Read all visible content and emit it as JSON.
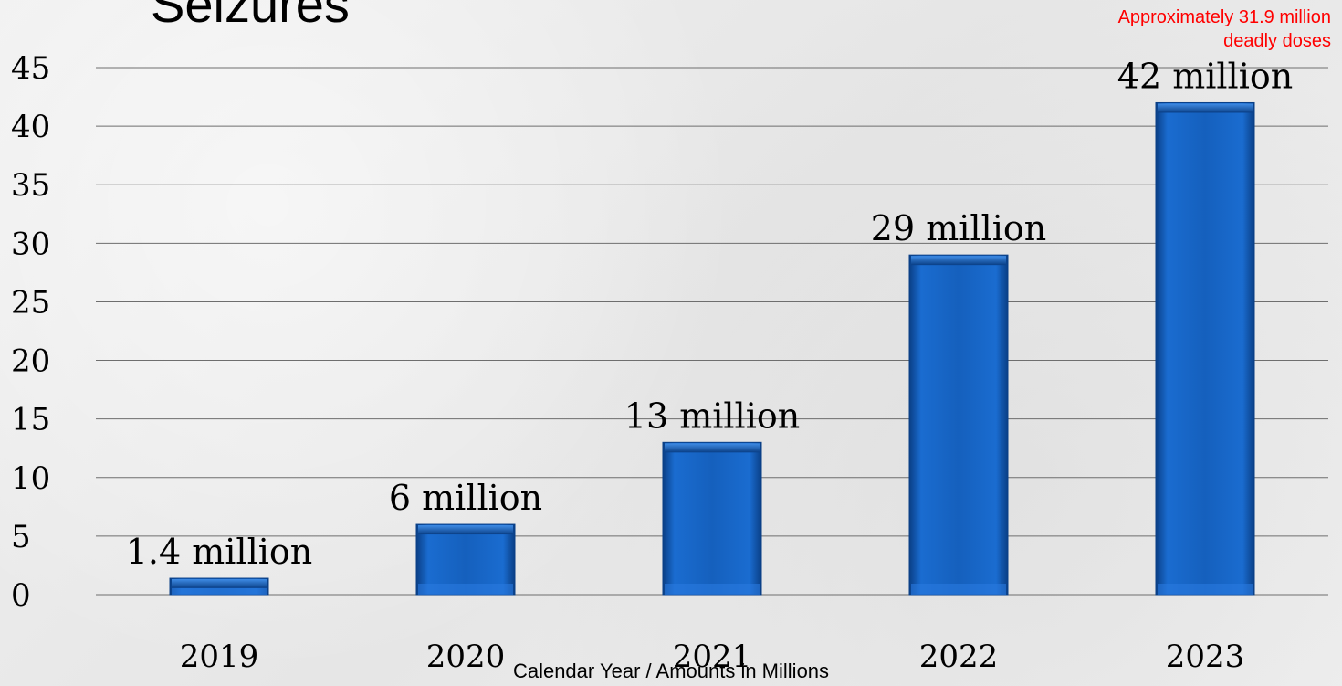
{
  "chart_data": {
    "type": "bar",
    "title": "Seizures",
    "categories": [
      "2019",
      "2020",
      "2021",
      "2022",
      "2023"
    ],
    "values": [
      1.4,
      6,
      13,
      29,
      42
    ],
    "data_labels": [
      "1.4 million",
      "6 million",
      "13 million",
      "29 million",
      "42 million"
    ],
    "xlabel": "Calendar Year / Amounts in Millions",
    "ylabel": "",
    "ylim": [
      0,
      45
    ],
    "yticks": [
      "0",
      "5",
      "10",
      "15",
      "20",
      "25",
      "30",
      "35",
      "40",
      "45"
    ],
    "grid": true,
    "annotation": "Approximately 31.9 million deadly doses",
    "colors": {
      "bar": "#1560bd",
      "bar_dark": "#0a3f86",
      "grid": "#6e6e6e"
    }
  }
}
